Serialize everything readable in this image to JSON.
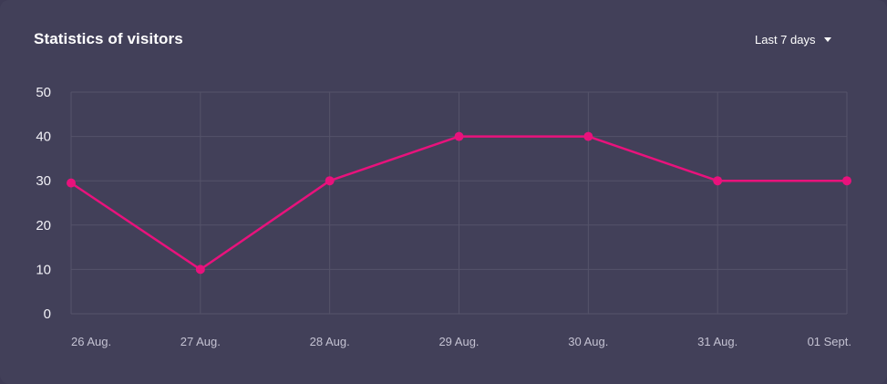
{
  "card": {
    "title": "Statistics of visitors"
  },
  "range_select": {
    "label": "Last 7 days",
    "icon": "caret-down-icon"
  },
  "colors": {
    "background": "#424059",
    "grid": "#55536a",
    "line": "#e8127c",
    "text": "#ffffff"
  },
  "chart_data": {
    "type": "line",
    "title": "Statistics of visitors",
    "xlabel": "",
    "ylabel": "",
    "categories": [
      "26 Aug.",
      "27 Aug.",
      "28 Aug.",
      "29 Aug.",
      "30 Aug.",
      "31 Aug.",
      "01 Sept."
    ],
    "series": [
      {
        "values": [
          29.5,
          10,
          30,
          40,
          40,
          30,
          30
        ]
      }
    ],
    "ylim": [
      0,
      50
    ],
    "yticks": [
      0,
      10,
      20,
      30,
      40,
      50
    ],
    "grid": true,
    "legend": "none"
  }
}
